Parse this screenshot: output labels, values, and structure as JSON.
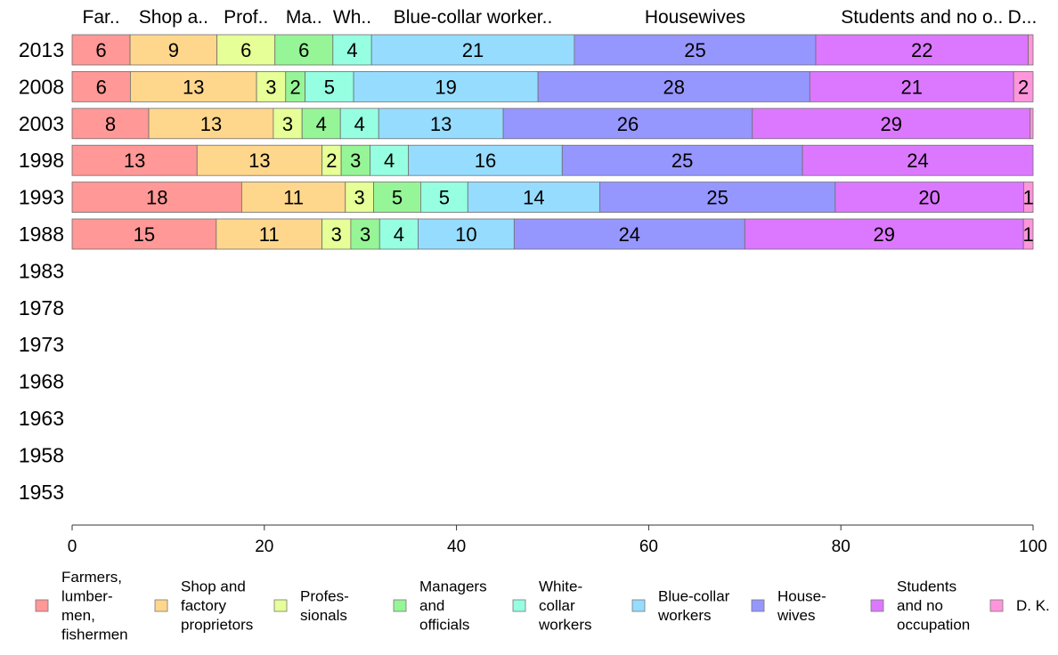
{
  "chart_data": {
    "type": "bar",
    "orientation": "horizontal",
    "stacked": true,
    "categories": [
      "2013",
      "2008",
      "2003",
      "1998",
      "1993",
      "1988",
      "1983",
      "1978",
      "1973",
      "1968",
      "1963",
      "1958",
      "1953"
    ],
    "top_labels": [
      "Far..",
      "Shop a..",
      "Prof..",
      "Ma..",
      "Wh..",
      "Blue-collar worker..",
      "Housewives",
      "Students and no o..",
      "D..."
    ],
    "series": [
      {
        "name": "Farmers, lumber- men, fishermen",
        "legend_lines": [
          "Farmers,",
          "lumber-",
          "men,",
          "fishermen"
        ],
        "color": "#ff9896",
        "values": [
          6,
          6,
          8,
          13,
          18,
          15,
          null,
          null,
          null,
          null,
          null,
          null,
          null
        ]
      },
      {
        "name": "Shop and factory proprietors",
        "legend_lines": [
          "Shop and",
          "factory",
          "proprietors"
        ],
        "color": "#ffd78c",
        "values": [
          9,
          13,
          13,
          13,
          11,
          11,
          null,
          null,
          null,
          null,
          null,
          null,
          null
        ]
      },
      {
        "name": "Profes- sionals",
        "legend_lines": [
          "Profes-",
          "sionals"
        ],
        "color": "#e6ff96",
        "values": [
          6,
          3,
          3,
          2,
          3,
          3,
          null,
          null,
          null,
          null,
          null,
          null,
          null
        ]
      },
      {
        "name": "Managers and officials",
        "legend_lines": [
          "Managers",
          "and",
          "officials"
        ],
        "color": "#96f596",
        "values": [
          6,
          2,
          4,
          3,
          5,
          3,
          null,
          null,
          null,
          null,
          null,
          null,
          null
        ]
      },
      {
        "name": "White- collar workers",
        "legend_lines": [
          "White-",
          "collar",
          "workers"
        ],
        "color": "#96ffe1",
        "values": [
          4,
          5,
          4,
          4,
          5,
          4,
          null,
          null,
          null,
          null,
          null,
          null,
          null
        ]
      },
      {
        "name": "Blue-collar workers",
        "legend_lines": [
          "Blue-collar",
          "workers"
        ],
        "color": "#96dcff",
        "values": [
          21,
          19,
          13,
          16,
          14,
          10,
          null,
          null,
          null,
          null,
          null,
          null,
          null
        ]
      },
      {
        "name": "House- wives",
        "legend_lines": [
          "House-",
          "wives"
        ],
        "color": "#9696ff",
        "values": [
          25,
          28,
          26,
          25,
          25,
          24,
          null,
          null,
          null,
          null,
          null,
          null,
          null
        ]
      },
      {
        "name": "Students and no occupation",
        "legend_lines": [
          "Students",
          "and no",
          "occupation"
        ],
        "color": "#dc78ff",
        "values": [
          22,
          21,
          29,
          24,
          20,
          29,
          null,
          null,
          null,
          null,
          null,
          null,
          null
        ]
      },
      {
        "name": "D. K.",
        "legend_lines": [
          "D. K."
        ],
        "color": "#ff96dc",
        "values": [
          0.5,
          2,
          0.3,
          0,
          1,
          1,
          null,
          null,
          null,
          null,
          null,
          null,
          null
        ]
      }
    ],
    "data_labels": [
      [
        "6",
        "9",
        "6",
        "6",
        "4",
        "21",
        "25",
        "22",
        ""
      ],
      [
        "6",
        "13",
        "3",
        "2",
        "5",
        "19",
        "28",
        "21",
        "2"
      ],
      [
        "8",
        "13",
        "3",
        "4",
        "4",
        "13",
        "26",
        "29",
        ""
      ],
      [
        "13",
        "13",
        "2",
        "3",
        "4",
        "16",
        "25",
        "24",
        ""
      ],
      [
        "18",
        "11",
        "3",
        "5",
        "5",
        "14",
        "25",
        "20",
        "1"
      ],
      [
        "15",
        "11",
        "3",
        "3",
        "4",
        "10",
        "24",
        "29",
        "1"
      ]
    ],
    "xlim": [
      0,
      100
    ],
    "xticks": [
      "0",
      "20",
      "40",
      "60",
      "80",
      "100"
    ],
    "grid": false,
    "legend_position": "bottom"
  }
}
